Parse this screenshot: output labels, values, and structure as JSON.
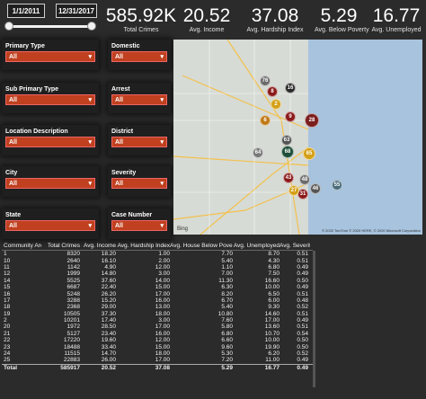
{
  "date_slicer": {
    "start": "1/1/2011",
    "end": "12/31/2017"
  },
  "kpis": [
    {
      "value": "585.92K",
      "label": "Total Crimes"
    },
    {
      "value": "20.52",
      "label": "Avg. Income"
    },
    {
      "value": "37.08",
      "label": "Avg. Hardship Index"
    },
    {
      "value": "5.29",
      "label": "Avg. Below Poverty"
    },
    {
      "value": "16.77",
      "label": "Avg. Unemployed"
    }
  ],
  "filters": [
    {
      "title": "Primary Type",
      "value": "All"
    },
    {
      "title": "Domestic",
      "value": "All"
    },
    {
      "title": "Sub Primary Type",
      "value": "All"
    },
    {
      "title": "Arrest",
      "value": "All"
    },
    {
      "title": "Location Description",
      "value": "All"
    },
    {
      "title": "District",
      "value": "All"
    },
    {
      "title": "City",
      "value": "All"
    },
    {
      "title": "Severity",
      "value": "All"
    },
    {
      "title": "State",
      "value": "All"
    },
    {
      "title": "Case Number",
      "value": "All"
    }
  ],
  "map": {
    "bing_label": "Bing",
    "credit": "© 2020 TomTom © 2020 HERE, © 2020 Microsoft Corporation",
    "bubbles": [
      "76",
      "8",
      "16",
      "2",
      "9",
      "6",
      "28",
      "63",
      "64",
      "68",
      "65",
      "48",
      "43",
      "46",
      "55",
      "31",
      "27"
    ]
  },
  "table": {
    "headers": [
      "Community Area",
      "Total Crimes",
      "Avg. Income",
      "Avg. Hardship Index",
      "Avg. House Below Poverty",
      "Avg. Unemployed",
      "Avg. Severity"
    ],
    "rows": [
      [
        "1",
        "8320",
        "18.20",
        "1.00",
        "7.70",
        "8.70",
        "0.51"
      ],
      [
        "10",
        "2640",
        "16.10",
        "2.00",
        "5.40",
        "4.30",
        "0.51"
      ],
      [
        "11",
        "1142",
        "4.90",
        "12.00",
        "1.10",
        "6.80",
        "0.49"
      ],
      [
        "12",
        "1999",
        "14.80",
        "3.00",
        "7.00",
        "7.50",
        "0.49"
      ],
      [
        "14",
        "5525",
        "37.60",
        "14.00",
        "11.30",
        "16.60",
        "0.50"
      ],
      [
        "15",
        "6687",
        "22.40",
        "15.00",
        "6.30",
        "10.00",
        "0.49"
      ],
      [
        "16",
        "5248",
        "26.20",
        "17.00",
        "8.20",
        "6.50",
        "0.51"
      ],
      [
        "17",
        "3288",
        "15.20",
        "16.00",
        "6.70",
        "6.00",
        "0.48"
      ],
      [
        "18",
        "2368",
        "29.00",
        "13.00",
        "5.40",
        "9.30",
        "0.52"
      ],
      [
        "19",
        "10505",
        "37.30",
        "18.00",
        "10.80",
        "14.60",
        "0.51"
      ],
      [
        "2",
        "10201",
        "17.40",
        "3.00",
        "7.60",
        "17.00",
        "0.49"
      ],
      [
        "20",
        "1972",
        "28.50",
        "17.00",
        "5.80",
        "13.60",
        "0.51"
      ],
      [
        "21",
        "5127",
        "23.40",
        "16.00",
        "6.80",
        "10.70",
        "0.54"
      ],
      [
        "22",
        "17220",
        "19.60",
        "12.00",
        "6.60",
        "10.00",
        "0.50"
      ],
      [
        "23",
        "18488",
        "33.40",
        "15.00",
        "9.60",
        "19.90",
        "0.50"
      ],
      [
        "24",
        "11515",
        "14.70",
        "18.00",
        "5.30",
        "6.20",
        "0.52"
      ],
      [
        "25",
        "22883",
        "26.00",
        "17.00",
        "7.20",
        "11.00",
        "0.49"
      ]
    ],
    "total": [
      "Total",
      "585917",
      "20.52",
      "37.08",
      "5.29",
      "16.77",
      "0.49"
    ]
  }
}
